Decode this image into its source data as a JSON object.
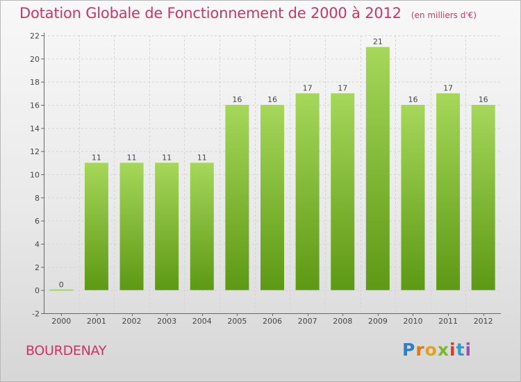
{
  "title": "Dotation Globale de Fonctionnement de 2000 à 2012",
  "unit": "(en milliers d'€)",
  "commune": "BOURDENAY",
  "logo": "Proxiti",
  "colors": {
    "title": "#cc3366",
    "bar_top": "#a6d75a",
    "bar_bottom": "#5d9914"
  },
  "chart_data": {
    "type": "bar",
    "categories": [
      "2000",
      "2001",
      "2002",
      "2003",
      "2004",
      "2005",
      "2006",
      "2007",
      "2008",
      "2009",
      "2010",
      "2011",
      "2012"
    ],
    "values": [
      0,
      11,
      11,
      11,
      11,
      16,
      16,
      17,
      17,
      21,
      16,
      17,
      16
    ],
    "ylim": [
      -2,
      22
    ],
    "yticks": [
      -2,
      0,
      2,
      4,
      6,
      8,
      10,
      12,
      14,
      16,
      18,
      20,
      22
    ],
    "grid": true,
    "legend": "none"
  }
}
